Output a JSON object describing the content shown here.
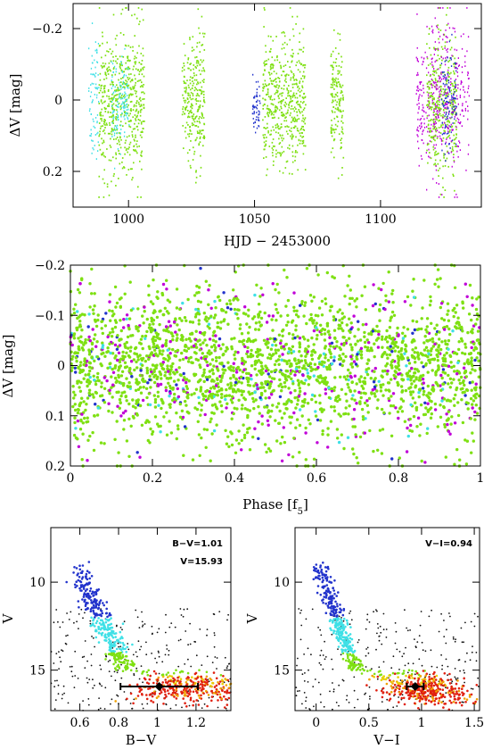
{
  "colors": {
    "cyan": "#3fe0e6",
    "green": "#7ee012",
    "blue": "#2233cc",
    "magenta": "#c000d8",
    "black": "#111111",
    "orange": "#f0a000",
    "red": "#e02010",
    "yellow": "#e8d000"
  },
  "chart_data": [
    {
      "type": "scatter",
      "xlabel": "HJD − 2453000",
      "ylabel": "ΔV [mag]",
      "xlim": [
        978,
        1140
      ],
      "ylim": [
        0.3,
        -0.27
      ],
      "x_ticks": [
        "1000",
        "1050",
        "1100"
      ],
      "x_tick_values": [
        1000,
        1050,
        1100
      ],
      "y_ticks": [
        "−0.2",
        "0",
        "0.2"
      ],
      "y_tick_values": [
        -0.2,
        0,
        0.2
      ],
      "segments": [
        {
          "x": [
            984,
            988
          ],
          "color": "cyan",
          "spread": 0.09
        },
        {
          "x": [
            988,
            1006
          ],
          "color": "green",
          "spread": 0.1
        },
        {
          "x": [
            993,
            1000
          ],
          "color": "cyan",
          "spread": 0.06
        },
        {
          "x": [
            1021,
            1030
          ],
          "color": "green",
          "spread": 0.09
        },
        {
          "x": [
            1049,
            1052
          ],
          "color": "blue",
          "spread": 0.04
        },
        {
          "x": [
            1053,
            1070
          ],
          "color": "green",
          "spread": 0.09
        },
        {
          "x": [
            1080,
            1085
          ],
          "color": "green",
          "spread": 0.08
        },
        {
          "x": [
            1114,
            1122
          ],
          "color": "magenta",
          "spread": 0.1
        },
        {
          "x": [
            1118,
            1130
          ],
          "color": "green",
          "spread": 0.1
        },
        {
          "x": [
            1120,
            1135
          ],
          "color": "magenta",
          "spread": 0.11
        },
        {
          "x": [
            1124,
            1130
          ],
          "color": "blue",
          "spread": 0.08
        }
      ]
    },
    {
      "type": "scatter",
      "xlabel": "Phase [f5]",
      "ylabel": "ΔV [mag]",
      "xlim": [
        0,
        1
      ],
      "ylim": [
        0.2,
        -0.2
      ],
      "x_ticks": [
        "0",
        "0.2",
        "0.4",
        "0.6",
        "0.8",
        "1"
      ],
      "x_tick_values": [
        0,
        0.2,
        0.4,
        0.6,
        0.8,
        1
      ],
      "y_ticks": [
        "−0.2",
        "−0.1",
        "0",
        "0.1",
        "0.2"
      ],
      "y_tick_values": [
        -0.2,
        -0.1,
        0,
        0.1,
        0.2
      ]
    },
    {
      "type": "scatter",
      "xlabel": "B−V",
      "ylabel": "V",
      "xlim": [
        0.45,
        1.38
      ],
      "ylim": [
        17.3,
        6.9
      ],
      "x_ticks": [
        "0.6",
        "0.8",
        "1",
        "1.2"
      ],
      "x_tick_values": [
        0.6,
        0.8,
        1.0,
        1.2
      ],
      "y_ticks": [
        "10",
        "15"
      ],
      "y_tick_values": [
        10,
        15
      ],
      "annotation_color": "B−V=1.01",
      "annotation_mag": "V=15.93",
      "star": {
        "x": 1.01,
        "y": 15.93,
        "xerr": 0.2
      }
    },
    {
      "type": "scatter",
      "xlabel": "V−I",
      "ylabel": "V",
      "xlim": [
        -0.2,
        1.55
      ],
      "ylim": [
        17.3,
        6.9
      ],
      "x_ticks": [
        "0",
        "0.5",
        "1",
        "1.5"
      ],
      "x_tick_values": [
        0,
        0.5,
        1.0,
        1.5
      ],
      "y_ticks": [
        "10",
        "15"
      ],
      "y_tick_values": [
        10,
        15
      ],
      "annotation_color": "V−I=0.94",
      "star": {
        "x": 0.94,
        "y": 15.93,
        "xerr": 0.08
      }
    }
  ]
}
